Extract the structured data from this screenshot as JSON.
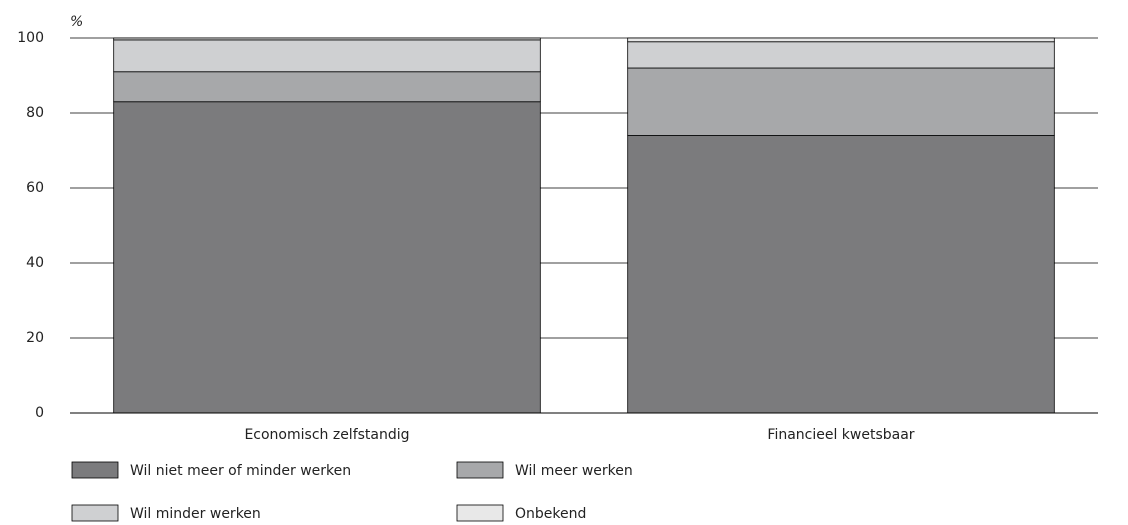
{
  "chart_data": {
    "type": "stacked_bar",
    "y_label": "%",
    "categories": [
      "Economisch zelfstandig",
      "Financieel kwetsbaar"
    ],
    "series": [
      {
        "name": "Wil niet meer of minder werken",
        "color": "#7b7b7d",
        "values": [
          83,
          74
        ]
      },
      {
        "name": "Wil meer werken",
        "color": "#a7a8aa",
        "values": [
          8,
          18
        ]
      },
      {
        "name": "Wil minder werken",
        "color": "#cfd0d2",
        "values": [
          8.5,
          7
        ]
      },
      {
        "name": "Onbekend",
        "color": "#e8e8e8",
        "values": [
          0.5,
          1
        ]
      }
    ],
    "ylim": [
      0,
      100
    ],
    "yticks": [
      0,
      20,
      40,
      60,
      80,
      100
    ],
    "grid": true
  }
}
